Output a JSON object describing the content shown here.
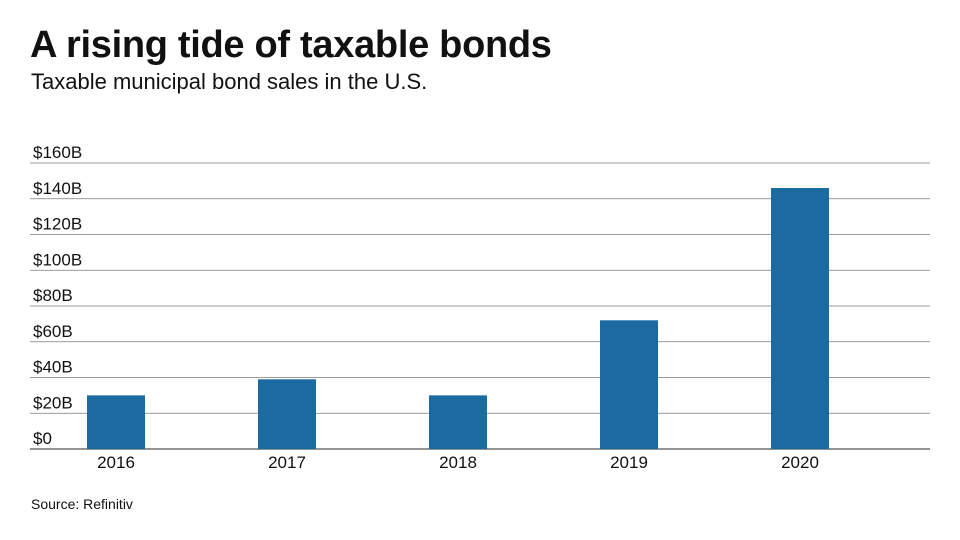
{
  "header": {
    "title": "A rising tide of taxable bonds",
    "subtitle": "Taxable municipal bond sales in the U.S."
  },
  "footer": {
    "source": "Source: Refinitiv"
  },
  "colors": {
    "bar": "#1b6aa0",
    "grid": "#7a7a7a",
    "text": "#111111"
  },
  "chart_data": {
    "type": "bar",
    "title": "A rising tide of taxable bonds",
    "subtitle": "Taxable municipal bond sales in the U.S.",
    "categories": [
      "2016",
      "2017",
      "2018",
      "2019",
      "2020"
    ],
    "values": [
      30,
      39,
      30,
      72,
      146
    ],
    "units": "Billions of dollars",
    "ylim": [
      0,
      160
    ],
    "yticks": [
      0,
      20,
      40,
      60,
      80,
      100,
      120,
      140,
      160
    ],
    "ytick_labels": [
      "$0",
      "$20B",
      "$40B",
      "$60B",
      "$80B",
      "$100B",
      "$120B",
      "$140B",
      "$160B"
    ],
    "grid": true,
    "legend": "none"
  }
}
